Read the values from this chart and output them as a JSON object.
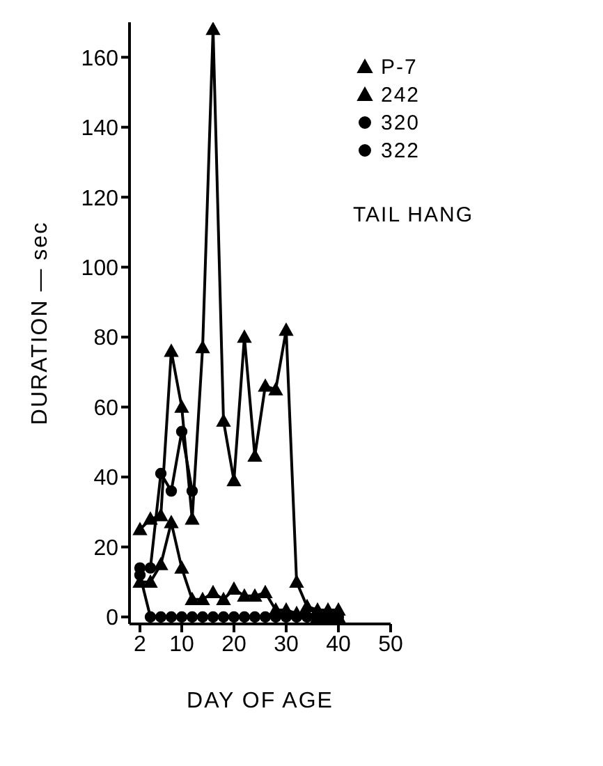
{
  "chart_data": {
    "type": "line",
    "xlabel": "DAY OF AGE",
    "ylabel": "DURATION — sec",
    "xlim": [
      0,
      50
    ],
    "xticks": [
      2,
      10,
      20,
      30,
      40,
      50
    ],
    "ylim": [
      -2,
      170
    ],
    "yticks": [
      0,
      20,
      40,
      60,
      80,
      100,
      120,
      140,
      160
    ],
    "grid": false,
    "legend": "top right",
    "annotations": [
      "TAIL HANG"
    ],
    "series": [
      {
        "name": "P-7",
        "color": "#000000",
        "marker": "triangle",
        "x": [
          2,
          4,
          6,
          8,
          10,
          12,
          14,
          16,
          18,
          20,
          22,
          24,
          26,
          28,
          30,
          32,
          34,
          36,
          38,
          40
        ],
        "values": [
          10,
          10,
          15,
          27,
          14,
          5,
          5,
          7,
          5,
          8,
          6,
          6,
          7,
          2,
          2,
          1,
          1,
          0,
          0,
          0
        ]
      },
      {
        "name": "242",
        "color": "#000000",
        "marker": "triangle",
        "x": [
          2,
          4,
          6,
          8,
          10,
          12,
          14,
          16,
          18,
          20,
          22,
          24,
          26,
          28,
          30,
          32,
          34,
          36,
          38,
          40
        ],
        "values": [
          25,
          28,
          29,
          76,
          60,
          28,
          77,
          168,
          56,
          39,
          80,
          46,
          66,
          65,
          82,
          10,
          3,
          2,
          2,
          2
        ]
      },
      {
        "name": "320",
        "color": "#000000",
        "marker": "circle",
        "x": [
          2,
          4,
          6,
          8,
          10,
          12,
          14,
          16,
          18,
          20,
          22,
          24,
          26,
          28,
          30,
          32,
          34,
          36,
          38,
          40
        ],
        "values": [
          12,
          0,
          0,
          0,
          0,
          0,
          0,
          0,
          0,
          0,
          0,
          0,
          0,
          0,
          0,
          0,
          0,
          0,
          0,
          0
        ]
      },
      {
        "name": "322",
        "color": "#000000",
        "marker": "circle",
        "x": [
          2,
          4,
          6,
          8,
          10,
          12
        ],
        "values": [
          14,
          14,
          41,
          36,
          53,
          36
        ]
      }
    ]
  }
}
